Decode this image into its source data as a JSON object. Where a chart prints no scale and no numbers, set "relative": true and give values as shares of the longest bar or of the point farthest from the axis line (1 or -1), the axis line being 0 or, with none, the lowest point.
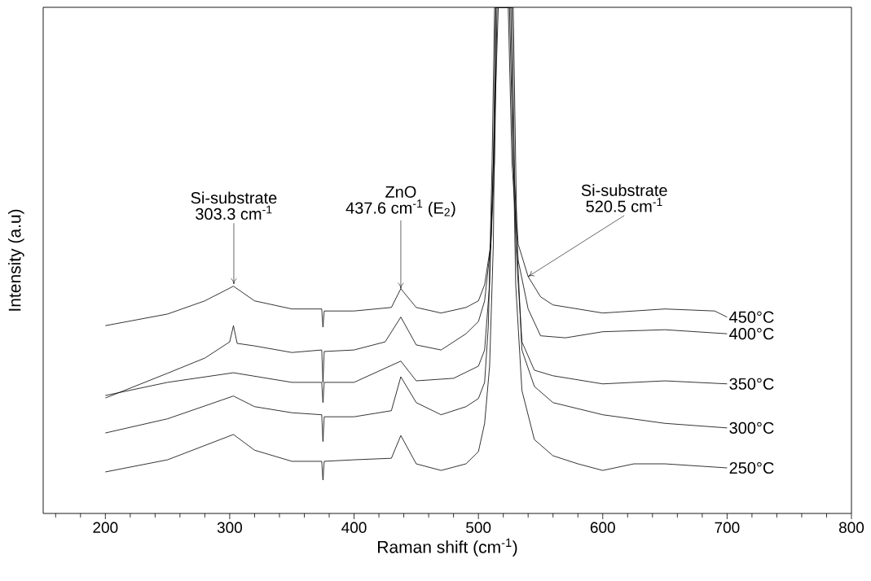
{
  "chart_data": {
    "type": "line",
    "xlabel": "Raman shift (cm$^{-1}$)",
    "ylabel": "Intensity (a.u)",
    "relative": true,
    "xlim": [
      150,
      800
    ],
    "xticks": [
      200,
      300,
      400,
      500,
      600,
      700,
      800
    ],
    "series": [
      {
        "name": "450°C",
        "color": "#000000",
        "x": [
          200,
          250,
          280,
          303,
          320,
          350,
          374,
          375,
          376,
          400,
          430,
          437.6,
          450,
          470,
          490,
          500,
          505,
          510,
          513,
          515,
          525,
          528,
          532,
          540,
          550,
          560,
          600,
          650,
          690,
          700
        ],
        "values": [
          0.371,
          0.394,
          0.42,
          0.449,
          0.42,
          0.404,
          0.404,
          0.368,
          0.4,
          0.4,
          0.407,
          0.444,
          0.407,
          0.396,
          0.407,
          0.42,
          0.452,
          0.532,
          0.693,
          1,
          1,
          0.693,
          0.532,
          0.468,
          0.428,
          0.412,
          0.396,
          0.404,
          0.4,
          0.388
        ]
      },
      {
        "name": "400°C",
        "color": "#000000",
        "x": [
          200,
          250,
          280,
          300,
          303,
          306,
          320,
          350,
          374,
          375,
          376,
          400,
          425,
          437.6,
          450,
          470,
          490,
          500,
          505,
          510,
          513,
          516,
          524,
          527,
          532,
          540,
          550,
          570,
          600,
          650,
          700
        ],
        "values": [
          0.228,
          0.277,
          0.307,
          0.339,
          0.371,
          0.336,
          0.331,
          0.318,
          0.323,
          0.259,
          0.32,
          0.323,
          0.339,
          0.388,
          0.333,
          0.323,
          0.355,
          0.379,
          0.42,
          0.532,
          0.773,
          1,
          1,
          0.693,
          0.5,
          0.404,
          0.351,
          0.347,
          0.359,
          0.363,
          0.355
        ]
      },
      {
        "name": "350°C",
        "color": "#000000",
        "x": [
          200,
          250,
          303,
          350,
          374,
          375,
          376,
          400,
          437.6,
          450,
          480,
          500,
          505,
          509,
          512,
          514,
          527,
          530,
          535,
          545,
          560,
          600,
          650,
          700
        ],
        "values": [
          0.233,
          0.259,
          0.278,
          0.259,
          0.259,
          0.219,
          0.259,
          0.259,
          0.301,
          0.262,
          0.267,
          0.291,
          0.323,
          0.452,
          0.693,
          1,
          1,
          0.532,
          0.339,
          0.283,
          0.272,
          0.256,
          0.262,
          0.256
        ]
      },
      {
        "name": "300°C",
        "color": "#000000",
        "x": [
          200,
          250,
          303,
          320,
          350,
          374,
          375,
          376,
          400,
          430,
          437.6,
          450,
          470,
          490,
          500,
          505,
          508,
          511,
          513,
          528,
          531,
          535,
          545,
          560,
          600,
          650,
          700
        ],
        "values": [
          0.159,
          0.187,
          0.232,
          0.211,
          0.199,
          0.195,
          0.142,
          0.191,
          0.191,
          0.203,
          0.27,
          0.219,
          0.195,
          0.211,
          0.227,
          0.259,
          0.371,
          0.693,
          1,
          1,
          0.532,
          0.323,
          0.251,
          0.219,
          0.195,
          0.178,
          0.169
        ]
      },
      {
        "name": "250°C",
        "color": "#000000",
        "x": [
          200,
          250,
          303,
          320,
          350,
          374,
          375,
          376,
          400,
          430,
          437.6,
          450,
          470,
          490,
          500,
          505,
          509,
          512,
          514,
          526,
          530,
          535,
          545,
          560,
          580,
          600,
          625,
          650,
          700
        ],
        "values": [
          0.082,
          0.106,
          0.156,
          0.125,
          0.103,
          0.103,
          0.066,
          0.103,
          0.106,
          0.109,
          0.154,
          0.098,
          0.085,
          0.098,
          0.122,
          0.178,
          0.291,
          0.532,
          1,
          1,
          0.452,
          0.243,
          0.146,
          0.114,
          0.098,
          0.085,
          0.098,
          0.098,
          0.09
        ]
      }
    ],
    "annotations": [
      "Si-substrate",
      {
        "text": "303.3 cm$^{-1}$",
        "x": 303.3,
        "y": 0.453
      },
      "ZnO",
      {
        "text": "437.6 cm$^{-1}$ (E$_{2}$)",
        "x": 437.6,
        "y": 0.444
      },
      "Si-substrate",
      {
        "text": "520.5 cm$^{-1}$",
        "x": 540,
        "y": 0.468
      }
    ]
  }
}
